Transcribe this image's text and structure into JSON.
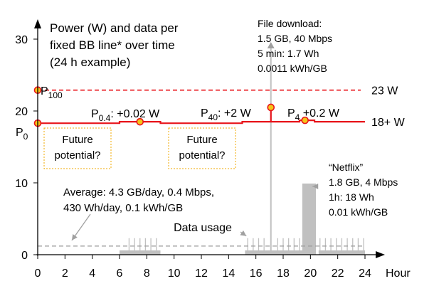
{
  "chart_data": {
    "type": "line",
    "title_lines": [
      "Power (W) and data per",
      "fixed BB line* over time",
      "(24 h example)"
    ],
    "xlabel": "Hour",
    "ylabel": "",
    "xlim": [
      0,
      24
    ],
    "ylim": [
      0,
      30
    ],
    "x_ticks": [
      "0",
      "2",
      "4",
      "6",
      "8",
      "10",
      "12",
      "14",
      "16",
      "18",
      "20",
      "22",
      "24"
    ],
    "y_ticks": [
      "0",
      "10",
      "20",
      "30"
    ],
    "grid": false,
    "colors": {
      "power": "#e8141b",
      "marker_fill": "#f5c518",
      "data": "#c0c0c0",
      "future": "#f2a900",
      "annotation": "#a0a0a0"
    },
    "max_power_line": {
      "y": 22.9,
      "label": "23 W"
    },
    "power_profile": {
      "label": "18+ W",
      "points": [
        [
          0,
          18.3
        ],
        [
          6,
          18.3
        ],
        [
          6,
          18.5
        ],
        [
          9,
          18.5
        ],
        [
          9,
          18.3
        ],
        [
          15,
          18.3
        ],
        [
          15,
          18.5
        ],
        [
          19.2,
          18.5
        ],
        [
          19.2,
          18.7
        ],
        [
          20.3,
          18.7
        ],
        [
          20.3,
          18.5
        ],
        [
          24,
          18.5
        ]
      ],
      "spike": {
        "x": 17.1,
        "y": 20.5
      }
    },
    "markers": [
      {
        "x": 0,
        "y": 22.9,
        "label": "P",
        "sub": "100"
      },
      {
        "x": 0,
        "y": 18.3,
        "label": "P",
        "sub": "0"
      },
      {
        "x": 7.5,
        "y": 18.5,
        "label": "P",
        "sub": "0.4",
        "delta": ": +0.02 W"
      },
      {
        "x": 17.1,
        "y": 20.5,
        "label": "P",
        "sub": "40",
        "delta": ": +2 W"
      },
      {
        "x": 19.6,
        "y": 18.7,
        "label": "P",
        "sub": "4",
        "delta": " +0.2 W"
      }
    ],
    "data_usage": {
      "label": "Data usage",
      "average_level": 1.2,
      "low_bars": [
        [
          6,
          9,
          0.6
        ],
        [
          15.2,
          19.6,
          0.6
        ],
        [
          20.6,
          24,
          0.6
        ]
      ],
      "download_bar": {
        "x": 17.1,
        "y": 30
      },
      "netflix_bar": {
        "x0": 19.4,
        "x1": 20.4,
        "y": 9.9
      },
      "ticks": [
        6.7,
        7.1,
        7.5,
        7.9,
        8.3,
        8.7,
        15.4,
        15.8,
        16.2,
        16.6,
        17.6,
        18.0,
        18.4,
        18.8,
        19.2,
        20.7,
        21.1,
        21.5,
        21.9,
        22.3,
        22.7,
        23.1,
        23.5,
        23.9
      ]
    },
    "annotations": {
      "download": [
        "File download:",
        "1.5 GB, 40 Mbps",
        "5 min: 1.7 Wh",
        "0.0011 kWh/GB"
      ],
      "netflix": [
        "“Netflix”",
        "1.8 GB, 4 Mbps",
        "1h: 18 Wh",
        "0.01 kWh/GB"
      ],
      "average": [
        "Average: 4.3 GB/day, 0.4 Mbps,",
        "430 Wh/day, 0.1 kWh/GB"
      ],
      "future_1": [
        "Future",
        "potential?"
      ],
      "future_2": [
        "Future",
        "potential?"
      ]
    }
  }
}
